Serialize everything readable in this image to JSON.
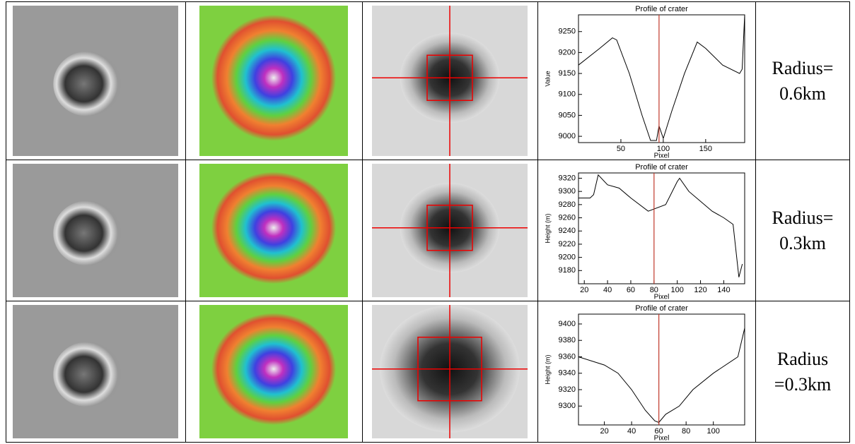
{
  "table": {
    "rows": [
      {
        "profile": {
          "type": "line",
          "title": "Profile of crater",
          "xlabel": "Pixel",
          "ylabel": "Value",
          "x": [
            0,
            25,
            40,
            45,
            60,
            75,
            85,
            92,
            95,
            100,
            110,
            125,
            140,
            150,
            170,
            190,
            193,
            196
          ],
          "values": [
            9170,
            9210,
            9235,
            9230,
            9150,
            9050,
            8990,
            8990,
            9025,
            8995,
            9060,
            9150,
            9225,
            9210,
            9170,
            9150,
            9160,
            9290
          ],
          "xlim": [
            0,
            196
          ],
          "ylim": [
            8985,
            9290
          ],
          "xticks": [
            50,
            100,
            150
          ],
          "yticks": [
            9000,
            9050,
            9100,
            9150,
            9200,
            9250
          ],
          "marker_x": 95,
          "color": "#000000",
          "marker_color": "#c0392b"
        },
        "radius": "Radius= 0.6km"
      },
      {
        "profile": {
          "type": "line",
          "title": "Profile of crater",
          "xlabel": "Pixel",
          "ylabel": "Height (m)",
          "x": [
            15,
            25,
            28,
            32,
            40,
            50,
            60,
            75,
            90,
            100,
            102,
            110,
            120,
            130,
            140,
            148,
            153,
            156
          ],
          "values": [
            9290,
            9290,
            9295,
            9325,
            9310,
            9305,
            9290,
            9270,
            9280,
            9315,
            9320,
            9300,
            9285,
            9270,
            9260,
            9250,
            9170,
            9190
          ],
          "xlim": [
            15,
            158
          ],
          "ylim": [
            9160,
            9328
          ],
          "xticks": [
            20,
            40,
            60,
            80,
            100,
            120,
            140
          ],
          "yticks": [
            9180,
            9200,
            9220,
            9240,
            9260,
            9280,
            9300,
            9320
          ],
          "marker_x": 80,
          "color": "#000000",
          "marker_color": "#c0392b"
        },
        "radius": "Radius= 0.3km"
      },
      {
        "profile": {
          "type": "line",
          "title": "Profile of crater",
          "xlabel": "Pixel",
          "ylabel": "Height (m)",
          "x": [
            1,
            20,
            30,
            40,
            50,
            57,
            60,
            65,
            75,
            85,
            100,
            118,
            123
          ],
          "values": [
            9360,
            9350,
            9340,
            9320,
            9295,
            9282,
            9280,
            9290,
            9300,
            9320,
            9340,
            9360,
            9395
          ],
          "xlim": [
            1,
            123
          ],
          "ylim": [
            9277,
            9412
          ],
          "xticks": [
            20,
            40,
            60,
            80,
            100
          ],
          "yticks": [
            9300,
            9320,
            9340,
            9360,
            9380,
            9400
          ],
          "marker_x": 60,
          "color": "#000000",
          "marker_color": "#c0392b"
        },
        "radius": "Radius =0.3km"
      }
    ]
  }
}
